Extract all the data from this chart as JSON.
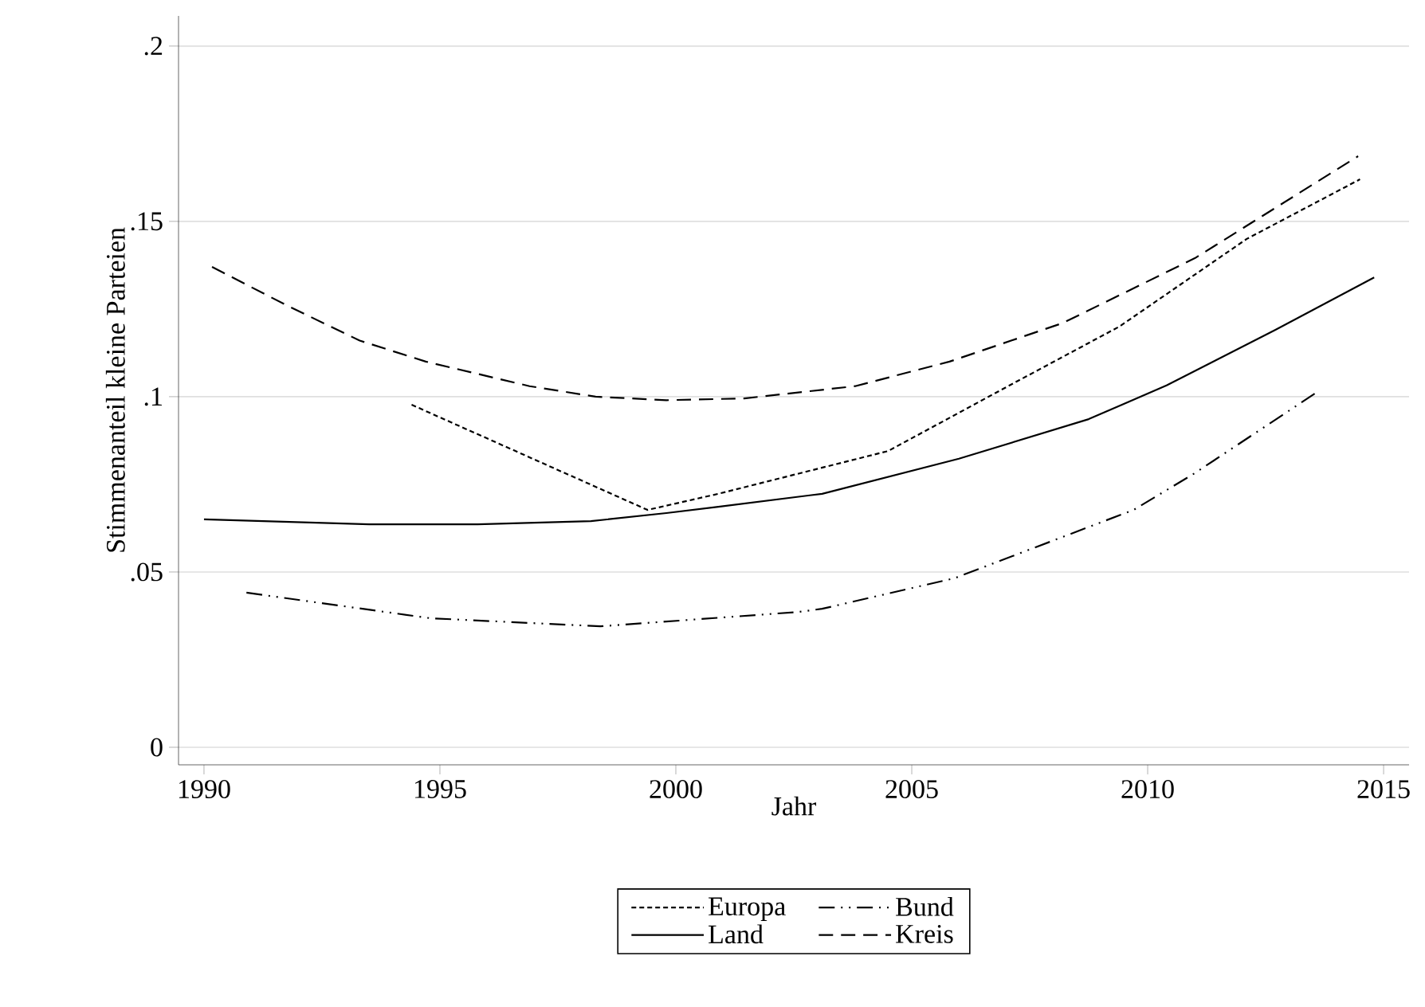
{
  "chart_data": {
    "type": "line",
    "xlabel": "Jahr",
    "ylabel": "Stimmenanteil kleine Parteien",
    "xlim": [
      1989.46,
      2015.54
    ],
    "ylim": [
      -0.005,
      0.2086
    ],
    "xticks": [
      1990,
      1995,
      2000,
      2005,
      2010,
      2015
    ],
    "yticks": [
      0,
      {
        "value": 0.05,
        "label": ".05"
      },
      {
        "value": 0.1,
        "label": ".1"
      },
      {
        "value": 0.15,
        "label": ".15"
      },
      {
        "value": 0.2,
        "label": ".2"
      }
    ],
    "grid": "y",
    "legend": "bottom",
    "series": [
      {
        "name": "Europa",
        "color": "#000000",
        "line_style": "dotted",
        "x": [
          1994.4,
          1999.4,
          2000.9,
          2004.5,
          2007,
          2009.4,
          2012.1,
          2014.5
        ],
        "values": [
          0.0977,
          0.0677,
          0.0723,
          0.0845,
          0.1027,
          0.12,
          0.145,
          0.162
        ]
      },
      {
        "name": "Bund",
        "color": "#000000",
        "line_style": "dashdotdotted",
        "x": [
          1990.9,
          1994.8,
          1998.4,
          2002.6,
          2003.1,
          2005.9,
          2009.7,
          2011,
          2013.6
        ],
        "values": [
          0.0441,
          0.0368,
          0.0345,
          0.0386,
          0.0395,
          0.0482,
          0.0677,
          0.0782,
          0.1014
        ]
      },
      {
        "name": "Land",
        "color": "#000000",
        "line_style": "solid",
        "x": [
          1990.0,
          1993.5,
          1995.8,
          1998.2,
          1999.8,
          2000.9,
          2003.1,
          2006,
          2008.75,
          2010.4,
          2012.7,
          2014.8
        ],
        "values": [
          0.065,
          0.0636,
          0.0636,
          0.0645,
          0.0668,
          0.0686,
          0.0723,
          0.0823,
          0.0936,
          0.1032,
          0.119,
          0.134
        ]
      },
      {
        "name": "Kreis",
        "color": "#000000",
        "line_style": "dashed",
        "x": [
          1990.17,
          1991.76,
          1993.3,
          1994.7,
          1996.9,
          1998.3,
          1999.8,
          2001.45,
          2003.8,
          2005.8,
          2008.2,
          2011,
          2014.46
        ],
        "values": [
          0.137,
          0.126,
          0.116,
          0.11,
          0.103,
          0.1,
          0.099,
          0.0995,
          0.103,
          0.11,
          0.121,
          0.1395,
          0.1686
        ]
      }
    ]
  }
}
